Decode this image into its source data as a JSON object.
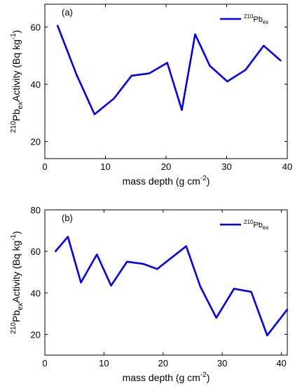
{
  "chart_data": [
    {
      "type": "line",
      "panel_label": "(a)",
      "xlabel": "mass depth (g cm",
      "xlabel_sup": "-2",
      "xlabel_end": ")",
      "ylabel": {
        "pre": "210",
        "base": "Pb",
        "sub": "ex",
        "text": "Activity (Bq kg",
        "sup": "-1",
        "end": ")"
      },
      "xlim": [
        0,
        40
      ],
      "ylim": [
        14,
        68
      ],
      "xticks": [
        0,
        10,
        20,
        30,
        40
      ],
      "yticks": [
        20,
        40,
        60
      ],
      "legend": {
        "position": "top-right",
        "sup": "210",
        "base": "Pb",
        "sub": "ex"
      },
      "color": "#0000ee",
      "series": [
        {
          "x": [
            2.1,
            5.2,
            8.2,
            11.4,
            14.3,
            17.2,
            20.2,
            22.6,
            24.8,
            27.2,
            30.1,
            33.1,
            36.1,
            38.9
          ],
          "y": [
            60.5,
            43.5,
            29.5,
            35.0,
            43.0,
            43.8,
            47.5,
            31.0,
            57.5,
            46.5,
            41.0,
            45.0,
            53.5,
            48.3
          ]
        }
      ]
    },
    {
      "type": "line",
      "panel_label": "(b)",
      "xlabel": "mass depth (g cm",
      "xlabel_sup": "-2",
      "xlabel_end": ")",
      "ylabel": {
        "pre": "210",
        "base": "Pb",
        "sub": "ex",
        "text": "Activity (Bq kg",
        "sup": "-1",
        "end": ")"
      },
      "xlim": [
        0,
        41
      ],
      "ylim": [
        10,
        80
      ],
      "xticks": [
        0,
        10,
        20,
        30,
        40
      ],
      "yticks": [
        20,
        40,
        60,
        80
      ],
      "legend": {
        "position": "top-right",
        "sup": "210",
        "base": "Pb",
        "sub": "ex"
      },
      "color": "#0000ee",
      "series": [
        {
          "x": [
            1.8,
            3.9,
            6.1,
            8.8,
            11.2,
            13.9,
            16.6,
            19.0,
            23.9,
            26.3,
            29.0,
            32.0,
            34.9,
            37.6,
            41.0
          ],
          "y": [
            60.0,
            67.0,
            45.0,
            58.5,
            43.5,
            55.0,
            54.0,
            51.5,
            62.5,
            43.0,
            28.0,
            42.0,
            40.5,
            19.5,
            32.0
          ]
        }
      ]
    }
  ]
}
